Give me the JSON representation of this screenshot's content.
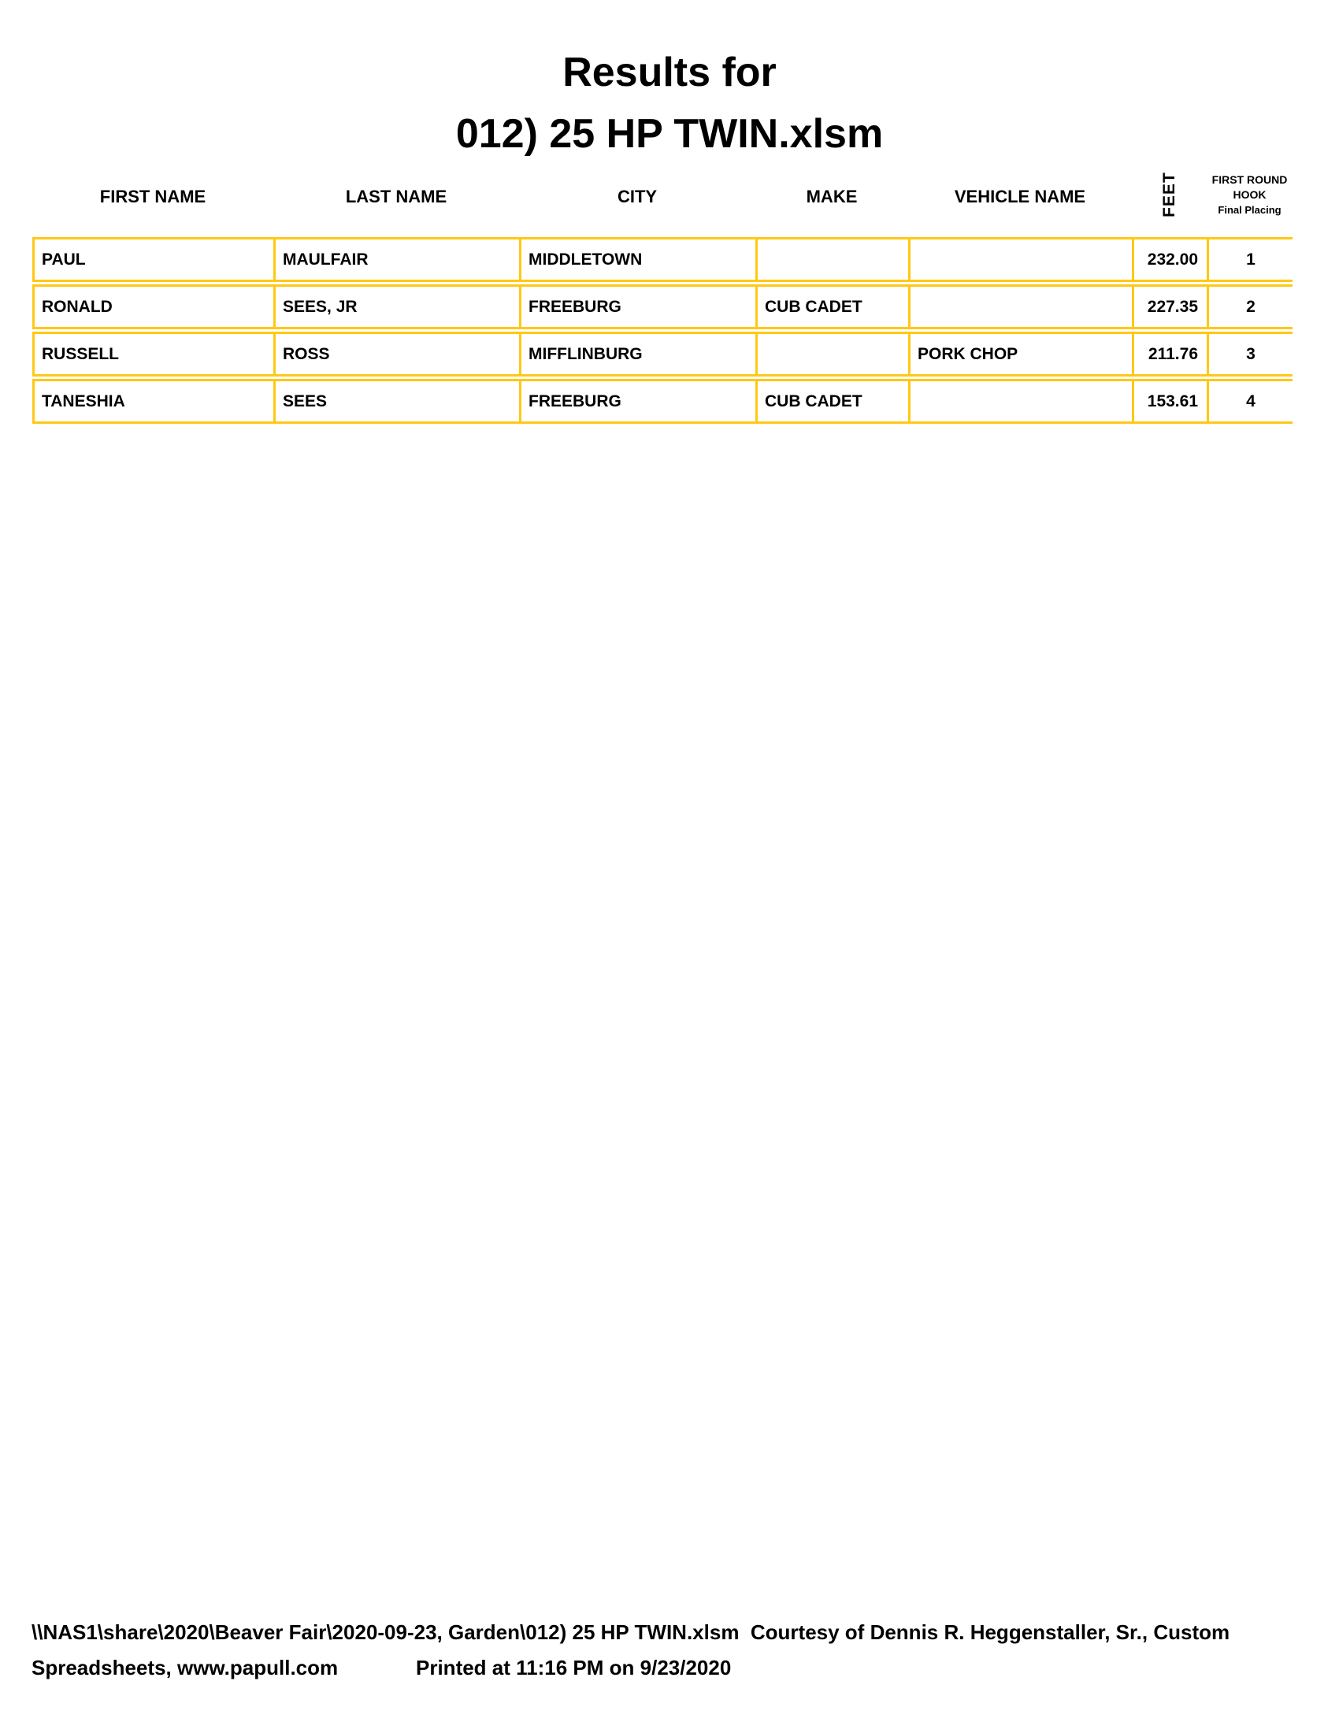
{
  "title": {
    "line1": "Results for",
    "line2": "012) 25 HP TWIN.xlsm"
  },
  "table": {
    "columns": [
      "FIRST NAME",
      "LAST NAME",
      "CITY",
      "MAKE",
      "VEHICLE NAME"
    ],
    "feet_header": "FEET",
    "placing_header": {
      "line1": "FIRST ROUND",
      "line2": "HOOK",
      "line3": "Final Placing"
    },
    "rows": [
      {
        "first_name": "PAUL",
        "last_name": "MAULFAIR",
        "city": "MIDDLETOWN",
        "make": "",
        "vehicle_name": "",
        "feet": "232.00",
        "placing": "1"
      },
      {
        "first_name": "RONALD",
        "last_name": "SEES, JR",
        "city": "FREEBURG",
        "make": "CUB CADET",
        "vehicle_name": "",
        "feet": "227.35",
        "placing": "2"
      },
      {
        "first_name": "RUSSELL",
        "last_name": "ROSS",
        "city": "MIFFLINBURG",
        "make": "",
        "vehicle_name": "PORK CHOP",
        "feet": "211.76",
        "placing": "3"
      },
      {
        "first_name": "TANESHIA",
        "last_name": "SEES",
        "city": "FREEBURG",
        "make": "CUB CADET",
        "vehicle_name": "",
        "feet": "153.61",
        "placing": "4"
      }
    ]
  },
  "footer": {
    "line1": "\\\\NAS1\\share\\2020\\Beaver Fair\\2020-09-23, Garden\\012) 25 HP TWIN.xlsm  Courtesy of Dennis R. Heggenstaller, Sr., Custom",
    "line2_left": "Spreadsheets, www.papull.com",
    "line2_right": "Printed at 11:16 PM on 9/23/2020"
  },
  "colors": {
    "border_gold": "#FFC814",
    "text": "#000000",
    "background": "#FFFFFF"
  }
}
